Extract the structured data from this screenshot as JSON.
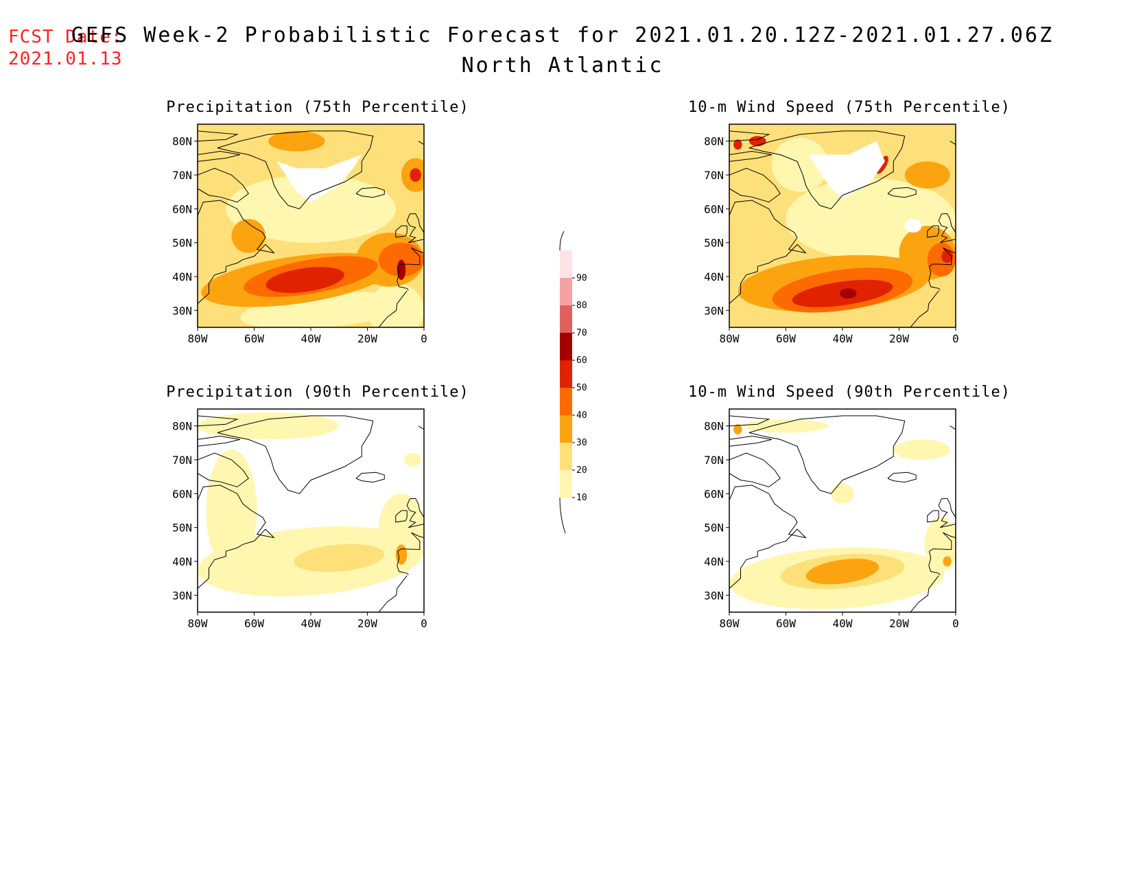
{
  "header": {
    "fcst_label": "FCST Date:",
    "fcst_date": "2021.01.13",
    "title": "GEFS Week-2 Probabilistic Forecast for 2021.01.20.12Z-2021.01.27.06Z",
    "region": "North Atlantic"
  },
  "colorbar": {
    "levels": [
      "10",
      "20",
      "30",
      "40",
      "50",
      "60",
      "70",
      "80",
      "90"
    ],
    "colors": [
      "#fff7b0",
      "#fde07a",
      "#fca310",
      "#fd6a00",
      "#e02200",
      "#a40000",
      "#e06060",
      "#f4a3a3",
      "#fde4e4"
    ]
  },
  "axes": {
    "lon_labels": [
      "80W",
      "60W",
      "40W",
      "20W",
      "0"
    ],
    "lat_labels": [
      "80N",
      "70N",
      "60N",
      "50N",
      "40N",
      "30N"
    ]
  },
  "panels": [
    {
      "title": "Precipitation (75th Percentile)",
      "variable": "precipitation",
      "percentile": 75
    },
    {
      "title": "10-m Wind Speed (75th Percentile)",
      "variable": "wind",
      "percentile": 75
    },
    {
      "title": "Precipitation (90th Percentile)",
      "variable": "precipitation",
      "percentile": 90
    },
    {
      "title": "10-m Wind Speed (90th Percentile)",
      "variable": "wind",
      "percentile": 90
    }
  ]
}
